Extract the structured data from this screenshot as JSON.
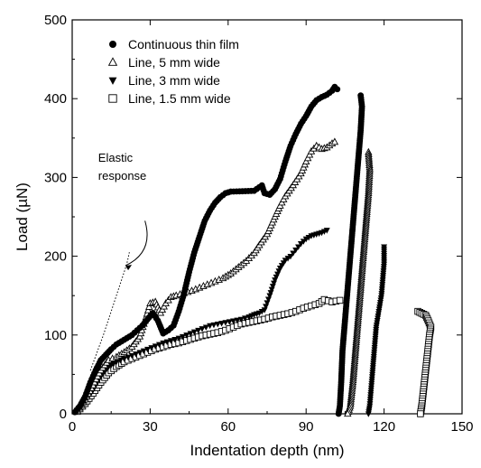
{
  "chart_data": {
    "type": "scatter",
    "xlabel": "Indentation depth (nm)",
    "ylabel": "Load (µN)",
    "xlim": [
      0,
      150
    ],
    "ylim": [
      0,
      500
    ],
    "xticks": [
      0,
      30,
      60,
      90,
      120,
      150
    ],
    "yticks": [
      0,
      100,
      200,
      300,
      400,
      500
    ],
    "x_tick_labels": [
      "0",
      "30",
      "60",
      "90",
      "120",
      "150"
    ],
    "y_tick_labels": [
      "0",
      "100",
      "200",
      "300",
      "400",
      "500"
    ],
    "grid": false,
    "legend_position": "top-left",
    "series": [
      {
        "name": "Continuous thin film",
        "marker": "filled-circle",
        "loading": [
          [
            1,
            2
          ],
          [
            3,
            10
          ],
          [
            5,
            22
          ],
          [
            7,
            40
          ],
          [
            9,
            55
          ],
          [
            11,
            68
          ],
          [
            13,
            75
          ],
          [
            15,
            82
          ],
          [
            17,
            88
          ],
          [
            19,
            92
          ],
          [
            21,
            96
          ],
          [
            23,
            100
          ],
          [
            25,
            106
          ],
          [
            27,
            112
          ],
          [
            29,
            120
          ],
          [
            31,
            128
          ],
          [
            33,
            118
          ],
          [
            35,
            102
          ],
          [
            37,
            106
          ],
          [
            39,
            112
          ],
          [
            41,
            130
          ],
          [
            43,
            152
          ],
          [
            45,
            180
          ],
          [
            47,
            205
          ],
          [
            49,
            225
          ],
          [
            51,
            245
          ],
          [
            53,
            258
          ],
          [
            55,
            268
          ],
          [
            57,
            275
          ],
          [
            59,
            280
          ],
          [
            61,
            282
          ],
          [
            70,
            283
          ],
          [
            73,
            290
          ],
          [
            74,
            280
          ],
          [
            76,
            278
          ],
          [
            78,
            285
          ],
          [
            80,
            298
          ],
          [
            82,
            320
          ],
          [
            84,
            340
          ],
          [
            86,
            355
          ],
          [
            88,
            368
          ],
          [
            90,
            378
          ],
          [
            92,
            390
          ],
          [
            94,
            398
          ],
          [
            96,
            402
          ],
          [
            98,
            405
          ],
          [
            100,
            410
          ],
          [
            101,
            415
          ],
          [
            102,
            412
          ]
        ],
        "unloading": [
          [
            111,
            404
          ],
          [
            111.5,
            390
          ],
          [
            111,
            360
          ],
          [
            110,
            320
          ],
          [
            109,
            280
          ],
          [
            108,
            240
          ],
          [
            107,
            200
          ],
          [
            106,
            160
          ],
          [
            105,
            120
          ],
          [
            104,
            80
          ],
          [
            103.5,
            40
          ],
          [
            103,
            10
          ],
          [
            102.5,
            0
          ]
        ]
      },
      {
        "name": "Line,  5 mm wide",
        "marker": "open-triangle-up",
        "loading": [
          [
            2,
            4
          ],
          [
            5,
            18
          ],
          [
            8,
            36
          ],
          [
            11,
            55
          ],
          [
            14,
            68
          ],
          [
            17,
            72
          ],
          [
            20,
            78
          ],
          [
            23,
            85
          ],
          [
            26,
            98
          ],
          [
            28,
            118
          ],
          [
            30,
            140
          ],
          [
            32,
            142
          ],
          [
            34,
            128
          ],
          [
            36,
            140
          ],
          [
            38,
            148
          ],
          [
            40,
            150
          ],
          [
            43,
            153
          ],
          [
            46,
            156
          ],
          [
            49,
            160
          ],
          [
            52,
            164
          ],
          [
            55,
            168
          ],
          [
            58,
            172
          ],
          [
            61,
            178
          ],
          [
            64,
            186
          ],
          [
            67,
            194
          ],
          [
            70,
            204
          ],
          [
            72,
            214
          ],
          [
            75,
            228
          ],
          [
            78,
            250
          ],
          [
            80,
            264
          ],
          [
            82,
            276
          ],
          [
            85,
            290
          ],
          [
            88,
            305
          ],
          [
            90,
            320
          ],
          [
            92,
            333
          ],
          [
            94,
            340
          ],
          [
            96,
            336
          ],
          [
            98,
            338
          ],
          [
            100,
            343
          ],
          [
            101,
            345
          ]
        ],
        "unloading": [
          [
            114,
            332
          ],
          [
            114.5,
            310
          ],
          [
            114,
            280
          ],
          [
            113,
            240
          ],
          [
            112,
            200
          ],
          [
            111,
            160
          ],
          [
            110,
            120
          ],
          [
            109,
            80
          ],
          [
            108,
            40
          ],
          [
            107,
            10
          ],
          [
            106,
            0
          ]
        ]
      },
      {
        "name": "Line,  3 mm wide",
        "marker": "filled-triangle-down",
        "loading": [
          [
            2,
            3
          ],
          [
            5,
            15
          ],
          [
            8,
            30
          ],
          [
            11,
            48
          ],
          [
            14,
            60
          ],
          [
            17,
            66
          ],
          [
            20,
            70
          ],
          [
            23,
            74
          ],
          [
            26,
            78
          ],
          [
            29,
            82
          ],
          [
            32,
            86
          ],
          [
            35,
            90
          ],
          [
            38,
            93
          ],
          [
            41,
            96
          ],
          [
            44,
            100
          ],
          [
            47,
            104
          ],
          [
            50,
            108
          ],
          [
            53,
            112
          ],
          [
            56,
            114
          ],
          [
            59,
            116
          ],
          [
            62,
            118
          ],
          [
            65,
            120
          ],
          [
            68,
            123
          ],
          [
            70,
            126
          ],
          [
            72,
            128
          ],
          [
            74,
            132
          ],
          [
            76,
            150
          ],
          [
            78,
            170
          ],
          [
            80,
            185
          ],
          [
            82,
            195
          ],
          [
            84,
            200
          ],
          [
            86,
            208
          ],
          [
            88,
            216
          ],
          [
            90,
            222
          ],
          [
            92,
            226
          ],
          [
            94,
            228
          ],
          [
            96,
            230
          ],
          [
            98,
            233
          ]
        ],
        "unloading": [
          [
            120,
            212
          ],
          [
            120,
            190
          ],
          [
            119.5,
            170
          ],
          [
            119,
            150
          ],
          [
            118,
            130
          ],
          [
            117,
            110
          ],
          [
            116.5,
            90
          ],
          [
            116,
            70
          ],
          [
            115.5,
            50
          ],
          [
            115,
            30
          ],
          [
            114.5,
            10
          ],
          [
            114,
            0
          ]
        ]
      },
      {
        "name": "Line,  1.5 mm wide",
        "marker": "open-square",
        "loading": [
          [
            2,
            3
          ],
          [
            5,
            13
          ],
          [
            8,
            26
          ],
          [
            11,
            40
          ],
          [
            14,
            52
          ],
          [
            17,
            60
          ],
          [
            20,
            66
          ],
          [
            23,
            70
          ],
          [
            26,
            74
          ],
          [
            29,
            78
          ],
          [
            32,
            82
          ],
          [
            35,
            85
          ],
          [
            38,
            88
          ],
          [
            41,
            90
          ],
          [
            44,
            93
          ],
          [
            47,
            96
          ],
          [
            50,
            99
          ],
          [
            53,
            101
          ],
          [
            56,
            103
          ],
          [
            59,
            106
          ],
          [
            62,
            110
          ],
          [
            65,
            114
          ],
          [
            68,
            116
          ],
          [
            71,
            118
          ],
          [
            74,
            120
          ],
          [
            77,
            123
          ],
          [
            80,
            125
          ],
          [
            83,
            127
          ],
          [
            86,
            130
          ],
          [
            89,
            134
          ],
          [
            92,
            137
          ],
          [
            95,
            140
          ],
          [
            97,
            145
          ],
          [
            100,
            142
          ],
          [
            103,
            144
          ]
        ],
        "unloading": [
          [
            133,
            130
          ],
          [
            136,
            125
          ],
          [
            137,
            118
          ],
          [
            138,
            110
          ],
          [
            137.5,
            100
          ],
          [
            137,
            85
          ],
          [
            136.5,
            70
          ],
          [
            136,
            55
          ],
          [
            135.5,
            40
          ],
          [
            135,
            25
          ],
          [
            134.5,
            10
          ],
          [
            134,
            0
          ]
        ]
      }
    ],
    "annotations": [
      {
        "text": "Elastic",
        "x": 10,
        "y": 320
      },
      {
        "text": "response",
        "x": 10,
        "y": 297
      }
    ],
    "reference_line": {
      "style": "dotted",
      "points": [
        [
          7,
          55
        ],
        [
          12,
          100
        ],
        [
          16,
          140
        ],
        [
          19,
          170
        ],
        [
          21,
          190
        ],
        [
          22,
          205
        ]
      ]
    },
    "annotation_arrow": {
      "style": "curved",
      "from": [
        28,
        245
      ],
      "to": [
        20.5,
        188
      ]
    }
  }
}
